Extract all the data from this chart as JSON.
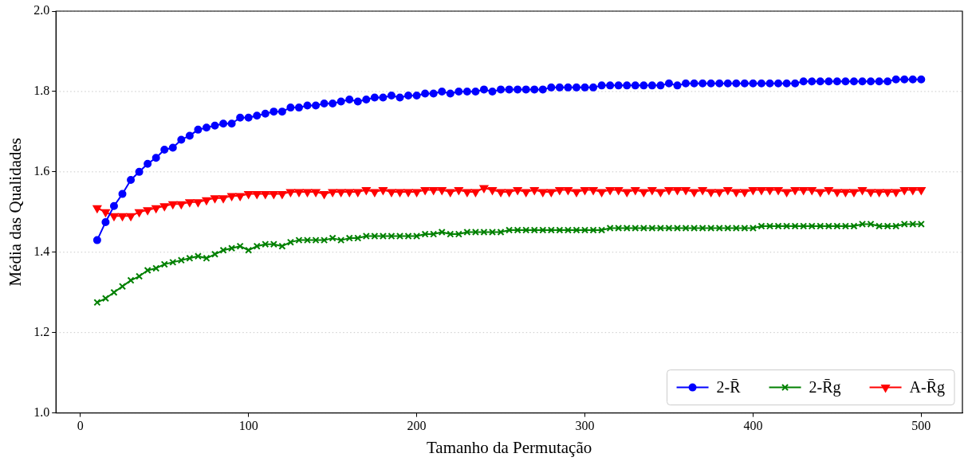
{
  "chart_data": {
    "type": "line",
    "xlabel": "Tamanho da Permutação",
    "ylabel": "Média das Qualidades",
    "x": [
      10,
      15,
      20,
      25,
      30,
      35,
      40,
      45,
      50,
      55,
      60,
      65,
      70,
      75,
      80,
      85,
      90,
      95,
      100,
      105,
      110,
      115,
      120,
      125,
      130,
      135,
      140,
      145,
      150,
      155,
      160,
      165,
      170,
      175,
      180,
      185,
      190,
      195,
      200,
      205,
      210,
      215,
      220,
      225,
      230,
      235,
      240,
      245,
      250,
      255,
      260,
      265,
      270,
      275,
      280,
      285,
      290,
      295,
      300,
      305,
      310,
      315,
      320,
      325,
      330,
      335,
      340,
      345,
      350,
      355,
      360,
      365,
      370,
      375,
      380,
      385,
      390,
      395,
      400,
      405,
      410,
      415,
      420,
      425,
      430,
      435,
      440,
      445,
      450,
      455,
      460,
      465,
      470,
      475,
      480,
      485,
      490,
      495,
      500
    ],
    "series": [
      {
        "name": "2-R̄",
        "color": "#0000ff",
        "marker": "circle",
        "values": [
          1.43,
          1.475,
          1.515,
          1.545,
          1.58,
          1.6,
          1.62,
          1.635,
          1.655,
          1.66,
          1.68,
          1.69,
          1.705,
          1.71,
          1.715,
          1.72,
          1.72,
          1.735,
          1.735,
          1.74,
          1.745,
          1.75,
          1.75,
          1.76,
          1.76,
          1.765,
          1.765,
          1.77,
          1.77,
          1.775,
          1.78,
          1.775,
          1.78,
          1.785,
          1.785,
          1.79,
          1.785,
          1.79,
          1.79,
          1.795,
          1.795,
          1.8,
          1.795,
          1.8,
          1.8,
          1.8,
          1.805,
          1.8,
          1.805,
          1.805,
          1.805,
          1.805,
          1.805,
          1.805,
          1.81,
          1.81,
          1.81,
          1.81,
          1.81,
          1.81,
          1.815,
          1.815,
          1.815,
          1.815,
          1.815,
          1.815,
          1.815,
          1.815,
          1.82,
          1.815,
          1.82,
          1.82,
          1.82,
          1.82,
          1.82,
          1.82,
          1.82,
          1.82,
          1.82,
          1.82,
          1.82,
          1.82,
          1.82,
          1.82,
          1.825,
          1.825,
          1.825,
          1.825,
          1.825,
          1.825,
          1.825,
          1.825,
          1.825,
          1.825,
          1.825,
          1.83,
          1.83,
          1.83,
          1.83
        ]
      },
      {
        "name": "2-R̄g",
        "color": "#008000",
        "marker": "cross",
        "values": [
          1.275,
          1.285,
          1.3,
          1.315,
          1.33,
          1.34,
          1.355,
          1.36,
          1.37,
          1.375,
          1.38,
          1.385,
          1.39,
          1.385,
          1.395,
          1.405,
          1.41,
          1.415,
          1.405,
          1.415,
          1.42,
          1.42,
          1.415,
          1.425,
          1.43,
          1.43,
          1.43,
          1.43,
          1.435,
          1.43,
          1.435,
          1.435,
          1.44,
          1.44,
          1.44,
          1.44,
          1.44,
          1.44,
          1.44,
          1.445,
          1.445,
          1.45,
          1.445,
          1.445,
          1.45,
          1.45,
          1.45,
          1.45,
          1.45,
          1.455,
          1.455,
          1.455,
          1.455,
          1.455,
          1.455,
          1.455,
          1.455,
          1.455,
          1.455,
          1.455,
          1.455,
          1.46,
          1.46,
          1.46,
          1.46,
          1.46,
          1.46,
          1.46,
          1.46,
          1.46,
          1.46,
          1.46,
          1.46,
          1.46,
          1.46,
          1.46,
          1.46,
          1.46,
          1.46,
          1.465,
          1.465,
          1.465,
          1.465,
          1.465,
          1.465,
          1.465,
          1.465,
          1.465,
          1.465,
          1.465,
          1.465,
          1.47,
          1.47,
          1.465,
          1.465,
          1.465,
          1.47,
          1.47,
          1.47
        ]
      },
      {
        "name": "A-R̄g",
        "color": "#ff0000",
        "marker": "triangle",
        "values": [
          1.51,
          1.5,
          1.49,
          1.49,
          1.49,
          1.5,
          1.505,
          1.51,
          1.515,
          1.52,
          1.52,
          1.525,
          1.525,
          1.53,
          1.535,
          1.535,
          1.54,
          1.54,
          1.545,
          1.545,
          1.545,
          1.545,
          1.545,
          1.55,
          1.55,
          1.55,
          1.55,
          1.545,
          1.55,
          1.55,
          1.55,
          1.55,
          1.555,
          1.55,
          1.555,
          1.55,
          1.55,
          1.55,
          1.55,
          1.555,
          1.555,
          1.555,
          1.55,
          1.555,
          1.55,
          1.55,
          1.56,
          1.555,
          1.55,
          1.55,
          1.555,
          1.55,
          1.555,
          1.55,
          1.55,
          1.555,
          1.555,
          1.55,
          1.555,
          1.555,
          1.55,
          1.555,
          1.555,
          1.55,
          1.555,
          1.55,
          1.555,
          1.55,
          1.555,
          1.555,
          1.555,
          1.55,
          1.555,
          1.55,
          1.55,
          1.555,
          1.55,
          1.55,
          1.555,
          1.555,
          1.555,
          1.555,
          1.55,
          1.555,
          1.555,
          1.555,
          1.55,
          1.555,
          1.55,
          1.55,
          1.55,
          1.555,
          1.55,
          1.55,
          1.55,
          1.55,
          1.555,
          1.555,
          1.555
        ]
      }
    ],
    "xlim": [
      -14.5,
      524.5
    ],
    "xticks": [
      0,
      100,
      200,
      300,
      400,
      500
    ],
    "ylim": [
      1,
      2
    ],
    "yticks": [
      {
        "value": 1,
        "label": "1.0"
      },
      {
        "value": 1.2,
        "label": "1.2"
      },
      {
        "value": 1.4,
        "label": "1.4"
      },
      {
        "value": 1.6,
        "label": "1.6"
      },
      {
        "value": 1.8,
        "label": "1.8"
      },
      {
        "value": 2,
        "label": "2.0"
      }
    ],
    "grid": "y",
    "legend": "bottom right",
    "line_style": "solid"
  }
}
